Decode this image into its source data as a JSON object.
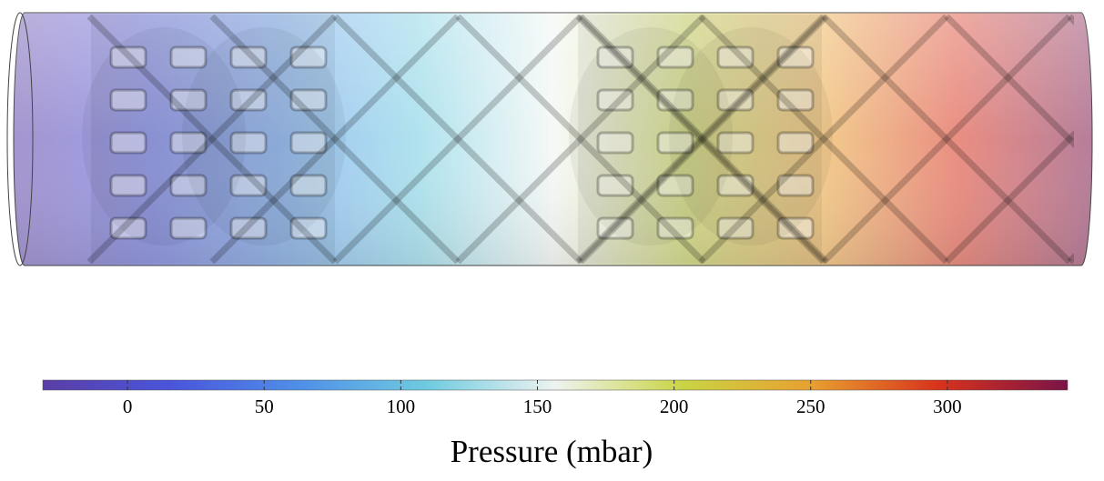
{
  "chart_data": {
    "type": "colorbar",
    "xlabel": "Pressure (mbar)",
    "xlim": [
      -31,
      344
    ],
    "xticks": [
      0,
      50,
      100,
      150,
      200,
      250,
      300
    ],
    "colors": [
      "#5a3ea6",
      "#4a55dc",
      "#4f8fe8",
      "#6fcbe0",
      "#eef3f0",
      "#c9d443",
      "#e8a030",
      "#d8321c",
      "#7a1448"
    ]
  }
}
